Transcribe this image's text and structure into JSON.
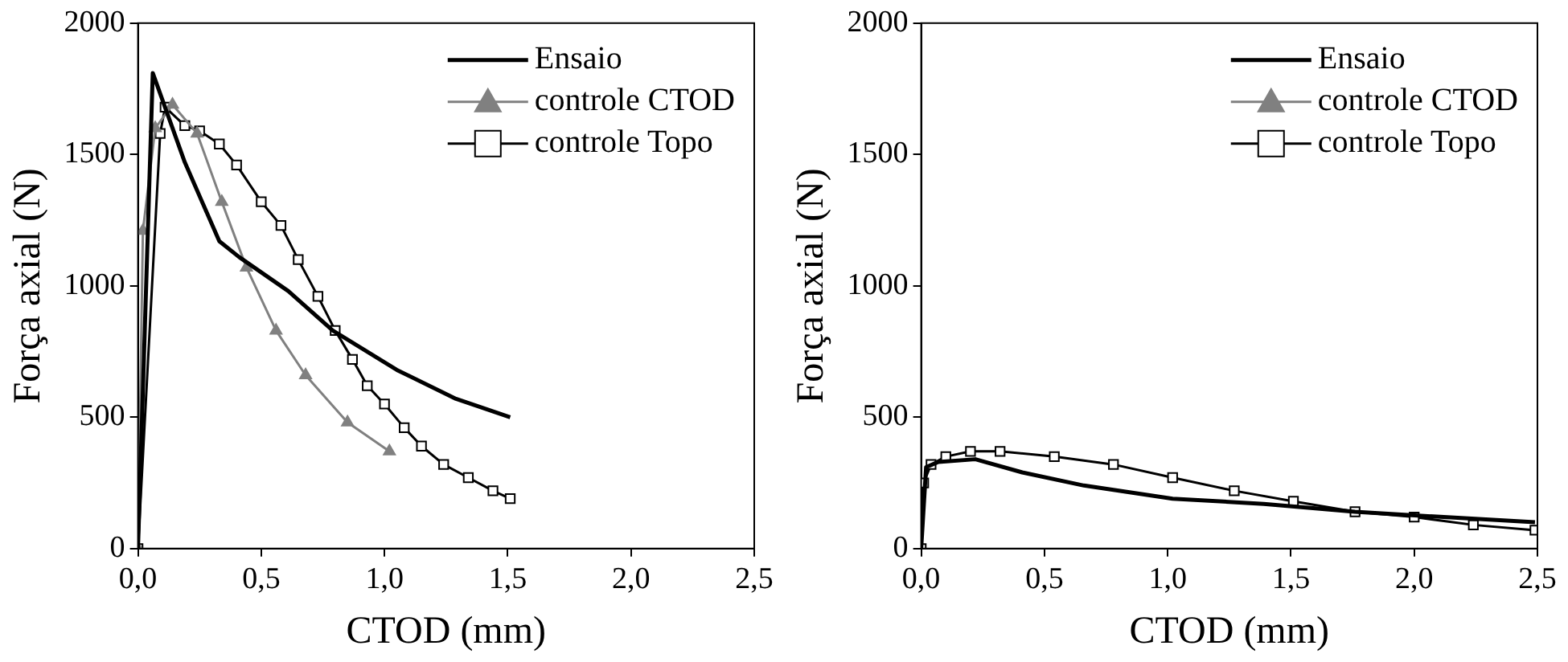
{
  "chart_data": [
    {
      "type": "line",
      "xlabel": "CTOD (mm)",
      "ylabel": "Força axial (N)",
      "xlim": [
        0,
        2.5
      ],
      "ylim": [
        0,
        2000
      ],
      "xticks": [
        {
          "value": 0,
          "label": "0,0"
        },
        {
          "value": 0.5,
          "label": "0,5"
        },
        {
          "value": 1,
          "label": "1,0"
        },
        {
          "value": 1.5,
          "label": "1,5"
        },
        {
          "value": 2,
          "label": "2,0"
        },
        {
          "value": 2.5,
          "label": "2,5"
        }
      ],
      "yticks": [
        0,
        500,
        1000,
        1500,
        2000
      ],
      "grid": false,
      "legend": "top right",
      "series": [
        {
          "name": "Ensaio",
          "color": "#000000",
          "marker": "none",
          "x": [
            0,
            0.06,
            0.19,
            0.33,
            0.41,
            0.61,
            0.79,
            1.05,
            1.29,
            1.51
          ],
          "values": [
            0,
            1810,
            1470,
            1170,
            1110,
            980,
            830,
            680,
            570,
            500
          ]
        },
        {
          "name": "controle CTOD",
          "color": "#808080",
          "marker": "triangle",
          "x": [
            0,
            0.02,
            0.07,
            0.14,
            0.24,
            0.34,
            0.44,
            0.56,
            0.68,
            0.85,
            1.02
          ],
          "values": [
            0,
            1210,
            1600,
            1690,
            1580,
            1320,
            1070,
            830,
            660,
            480,
            370
          ]
        },
        {
          "name": "controle Topo",
          "color": "#000000",
          "marker": "square",
          "x": [
            0,
            0.09,
            0.11,
            0.19,
            0.25,
            0.33,
            0.4,
            0.5,
            0.58,
            0.65,
            0.73,
            0.8,
            0.87,
            0.93,
            1.0,
            1.08,
            1.15,
            1.24,
            1.34,
            1.44,
            1.51
          ],
          "values": [
            0,
            1580,
            1680,
            1610,
            1590,
            1540,
            1460,
            1320,
            1230,
            1100,
            960,
            830,
            720,
            620,
            550,
            460,
            390,
            320,
            270,
            220,
            190
          ]
        }
      ]
    },
    {
      "type": "line",
      "xlabel": "CTOD (mm)",
      "ylabel": "Força axial (N)",
      "xlim": [
        0,
        2.5
      ],
      "ylim": [
        0,
        2000
      ],
      "xticks": [
        {
          "value": 0,
          "label": "0,0"
        },
        {
          "value": 0.5,
          "label": "0,5"
        },
        {
          "value": 1,
          "label": "1,0"
        },
        {
          "value": 1.5,
          "label": "1,5"
        },
        {
          "value": 2,
          "label": "2,0"
        },
        {
          "value": 2.5,
          "label": "2,5"
        }
      ],
      "yticks": [
        0,
        500,
        1000,
        1500,
        2000
      ],
      "grid": false,
      "legend": "top right",
      "series": [
        {
          "name": "Ensaio",
          "color": "#000000",
          "marker": "none",
          "x": [
            0,
            0.02,
            0.07,
            0.22,
            0.41,
            0.66,
            1.02,
            1.39,
            1.76,
            2.12,
            2.49
          ],
          "values": [
            0,
            310,
            330,
            340,
            290,
            240,
            190,
            170,
            140,
            120,
            100
          ]
        },
        {
          "name": "controle CTOD",
          "color": "#808080",
          "marker": "triangle"
        },
        {
          "name": "controle Topo",
          "color": "#000000",
          "marker": "square",
          "x": [
            0,
            0.01,
            0.04,
            0.1,
            0.2,
            0.32,
            0.54,
            0.78,
            1.02,
            1.27,
            1.51,
            1.76,
            2.0,
            2.24,
            2.49
          ],
          "values": [
            0,
            250,
            320,
            350,
            370,
            370,
            350,
            320,
            270,
            220,
            180,
            140,
            120,
            90,
            70
          ]
        }
      ]
    }
  ]
}
